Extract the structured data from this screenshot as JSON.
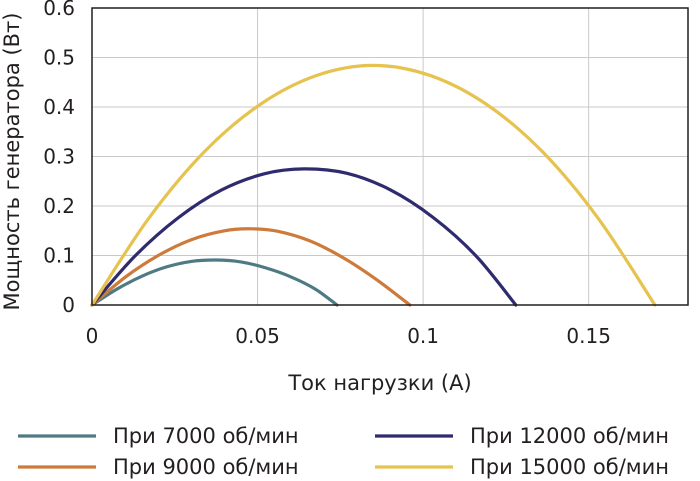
{
  "chart_data": {
    "type": "line",
    "xlabel": "Ток нагрузки (А)",
    "ylabel": "Мощность генератора (Вт)",
    "xlim": [
      0,
      0.18
    ],
    "ylim": [
      0,
      0.6
    ],
    "x_ticks": [
      {
        "value": 0,
        "label": "0"
      },
      {
        "value": 0.05,
        "label": "0.05"
      },
      {
        "value": 0.1,
        "label": "0.1"
      },
      {
        "value": 0.15,
        "label": "0.15"
      }
    ],
    "y_ticks": [
      {
        "value": 0,
        "label": "0"
      },
      {
        "value": 0.1,
        "label": "0.1"
      },
      {
        "value": 0.2,
        "label": "0.2"
      },
      {
        "value": 0.3,
        "label": "0.3"
      },
      {
        "value": 0.4,
        "label": "0.4"
      },
      {
        "value": 0.5,
        "label": "0.5"
      },
      {
        "value": 0.6,
        "label": "0.6"
      }
    ],
    "x_grid": [
      0.05,
      0.1,
      0.15
    ],
    "y_grid": [
      0.1,
      0.2,
      0.3,
      0.4,
      0.5
    ],
    "grid": true,
    "legend_position": "bottom",
    "series": [
      {
        "name": "При 7000 об/мин",
        "color": "#4e7a84",
        "x": [
          0,
          0.0075,
          0.015,
          0.0225,
          0.03,
          0.0375,
          0.045,
          0.0525,
          0.06,
          0.0675,
          0.074
        ],
        "y": [
          0,
          0.032,
          0.058,
          0.077,
          0.088,
          0.091,
          0.087,
          0.075,
          0.057,
          0.032,
          0
        ]
      },
      {
        "name": "При 9000 об/мин",
        "color": "#cd7a3a",
        "x": [
          0,
          0.01,
          0.02,
          0.03,
          0.04,
          0.048,
          0.056,
          0.066,
          0.076,
          0.086,
          0.096
        ],
        "y": [
          0,
          0.056,
          0.1,
          0.132,
          0.15,
          0.154,
          0.149,
          0.129,
          0.095,
          0.051,
          0
        ]
      },
      {
        "name": "При 12000 об/мин",
        "color": "#2e2b6e",
        "x": [
          0,
          0.013,
          0.026,
          0.039,
          0.052,
          0.064,
          0.077,
          0.09,
          0.103,
          0.116,
          0.128
        ],
        "y": [
          0,
          0.099,
          0.176,
          0.232,
          0.265,
          0.275,
          0.266,
          0.233,
          0.177,
          0.099,
          0
        ]
      },
      {
        "name": "При 15000 об/мин",
        "color": "#e6c24e",
        "x": [
          0,
          0.017,
          0.034,
          0.051,
          0.068,
          0.085,
          0.102,
          0.119,
          0.136,
          0.153,
          0.17
        ],
        "y": [
          0,
          0.174,
          0.31,
          0.406,
          0.464,
          0.484,
          0.464,
          0.406,
          0.31,
          0.174,
          0
        ]
      }
    ]
  }
}
